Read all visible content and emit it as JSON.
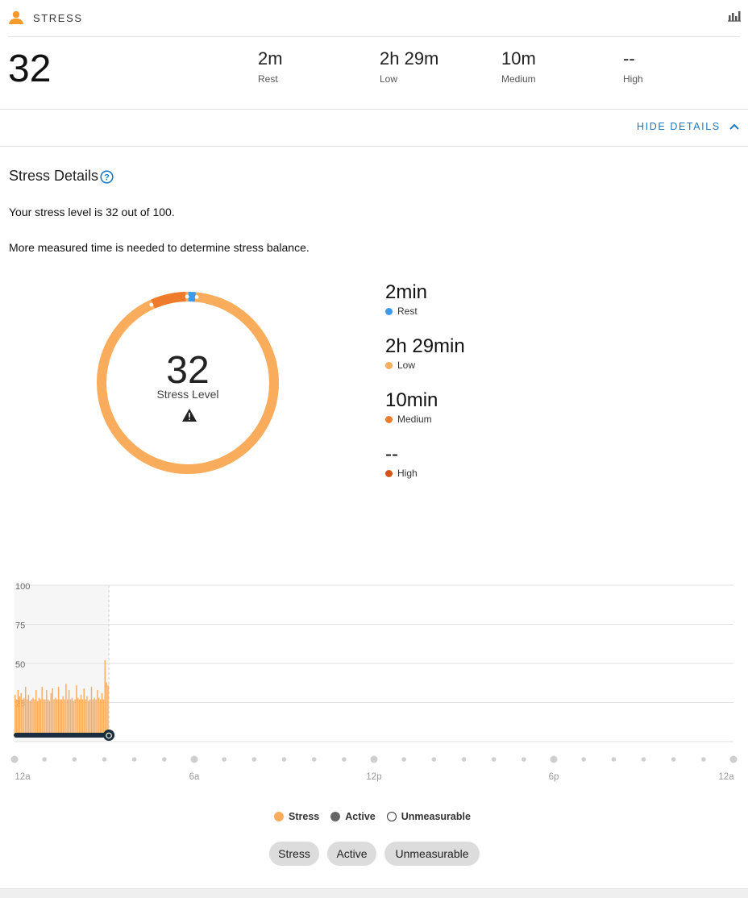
{
  "header": {
    "title": "STRESS"
  },
  "summary": {
    "score": "32",
    "items": [
      {
        "value": "2m",
        "label": "Rest"
      },
      {
        "value": "2h 29m",
        "label": "Low"
      },
      {
        "value": "10m",
        "label": "Medium"
      },
      {
        "value": "--",
        "label": "High"
      }
    ]
  },
  "details_toggle": {
    "label": "HIDE DETAILS"
  },
  "details": {
    "title": "Stress Details",
    "line1": "Your stress level is 32 out of 100.",
    "line2": "More measured time is needed to determine stress balance."
  },
  "donut": {
    "score": "32",
    "label": "Stress Level",
    "segments": [
      {
        "name": "Rest",
        "minutes": 2,
        "color": "#3d9be9"
      },
      {
        "name": "Low",
        "minutes": 149,
        "color": "#f9ad5c"
      },
      {
        "name": "Medium",
        "minutes": 10,
        "color": "#ee7a2c"
      },
      {
        "name": "High",
        "minutes": 0,
        "color": "#d6541b"
      }
    ]
  },
  "breakdown": [
    {
      "value": "2min",
      "label": "Rest",
      "color": "#3d9be9"
    },
    {
      "value": "2h 29min",
      "label": "Low",
      "color": "#f9ad5c"
    },
    {
      "value": "10min",
      "label": "Medium",
      "color": "#ee7a2c"
    },
    {
      "value": "--",
      "label": "High",
      "color": "#d6541b"
    }
  ],
  "chart_data": {
    "type": "bar",
    "ylim": [
      0,
      100
    ],
    "yticks": [
      "100",
      "75",
      "50",
      "25"
    ],
    "xtick_labels": [
      "12a",
      "6a",
      "12p",
      "6p",
      "12a"
    ],
    "x_range_hours": [
      0,
      24
    ],
    "measured_until_hour": 3.15,
    "series": [
      {
        "name": "Stress",
        "color": "#f9ad5c",
        "hour_start": 0,
        "hour_step": 0.05,
        "values": [
          30,
          27,
          33,
          29,
          31,
          27,
          28,
          35,
          27,
          30,
          26,
          27,
          28,
          27,
          33,
          26,
          28,
          27,
          35,
          27,
          27,
          33,
          27,
          26,
          31,
          34,
          27,
          28,
          27,
          35,
          27,
          27,
          29,
          27,
          37,
          27,
          33,
          27,
          28,
          26,
          27,
          36,
          28,
          27,
          30,
          27,
          34,
          27,
          29,
          26,
          27,
          35,
          27,
          28,
          27,
          33,
          28,
          27,
          31,
          27,
          52,
          38,
          36
        ]
      }
    ]
  },
  "legend": [
    {
      "label": "Stress",
      "color": "#f9ad5c",
      "style": "filled"
    },
    {
      "label": "Active",
      "color": "#666666",
      "style": "filled"
    },
    {
      "label": "Unmeasurable",
      "color": "#ffffff",
      "style": "outline"
    }
  ],
  "filters": [
    {
      "label": "Stress"
    },
    {
      "label": "Active"
    },
    {
      "label": "Unmeasurable"
    }
  ]
}
